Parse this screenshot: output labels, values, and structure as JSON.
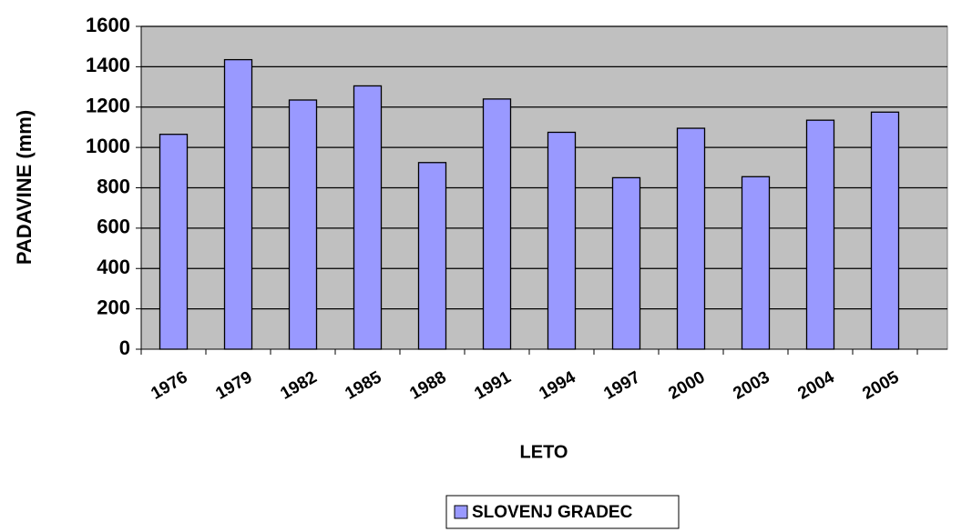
{
  "chart_data": {
    "type": "bar",
    "x_label": "LETO",
    "y_label": "PADAVINE (mm)",
    "categories": [
      "1976",
      "1979",
      "1982",
      "1985",
      "1988",
      "1991",
      "1994",
      "1997",
      "2000",
      "2003",
      "2004",
      "2005"
    ],
    "series": [
      {
        "name": "SLOVENJ GRADEC",
        "color": "#9999ff",
        "values": [
          1065,
          1435,
          1235,
          1305,
          925,
          1240,
          1075,
          850,
          1095,
          855,
          1135,
          1175
        ]
      }
    ],
    "ylim": [
      0,
      1600
    ],
    "yticks": [
      0,
      200,
      400,
      600,
      800,
      1000,
      1200,
      1400,
      1600
    ],
    "grid": true,
    "legend": "bottom"
  }
}
